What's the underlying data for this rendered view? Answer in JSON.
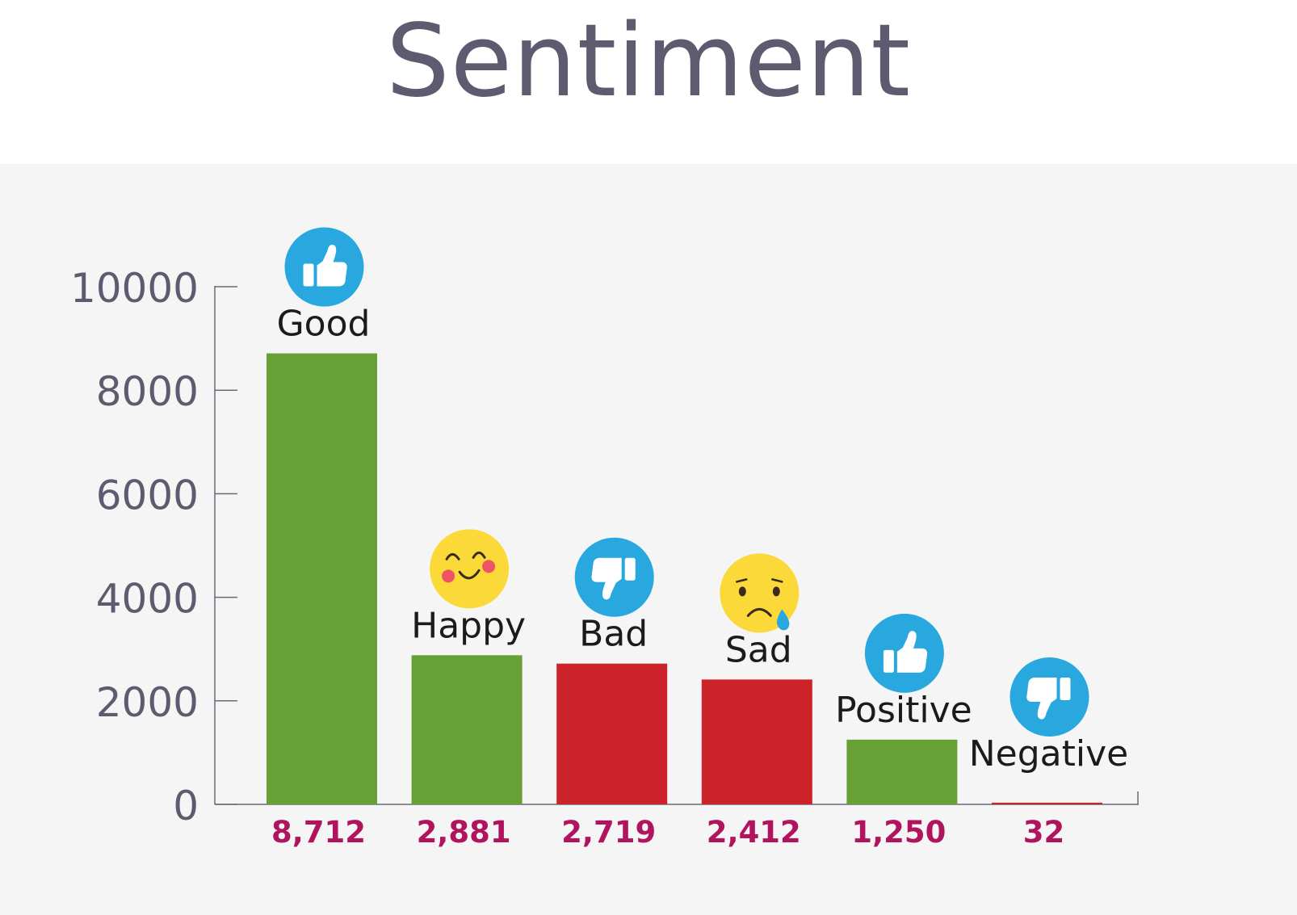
{
  "chart_data": {
    "type": "bar",
    "title": "Sentiment",
    "xlabel": "",
    "ylabel": "",
    "ylim": [
      0,
      10000
    ],
    "yticks": [
      "0",
      "2000",
      "4000",
      "6000",
      "8000",
      "10000"
    ],
    "grid": false,
    "categories": [
      "Good",
      "Happy",
      "Bad",
      "Sad",
      "Positive",
      "Negative"
    ],
    "values": [
      8712,
      2881,
      2719,
      2412,
      1250,
      32
    ],
    "value_labels": [
      "8,712",
      "2,881",
      "2,719",
      "2,412",
      "1,250",
      "32"
    ],
    "bar_colors": [
      "#67a135",
      "#67a135",
      "#cc2229",
      "#cc2229",
      "#67a135",
      "#cc2229"
    ],
    "icons": [
      "thumbs-up-icon",
      "smiling-emoji-icon",
      "thumbs-down-icon",
      "sad-emoji-icon",
      "thumbs-up-icon",
      "thumbs-down-icon"
    ]
  },
  "colors": {
    "positive": "#67a135",
    "negative": "#cc2229",
    "icon_blue": "#29a8e0",
    "emoji_yellow": "#fbd938",
    "value_label": "#b0145e",
    "axis_text": "#5d5b6f",
    "category_text": "#1b1b1b"
  }
}
